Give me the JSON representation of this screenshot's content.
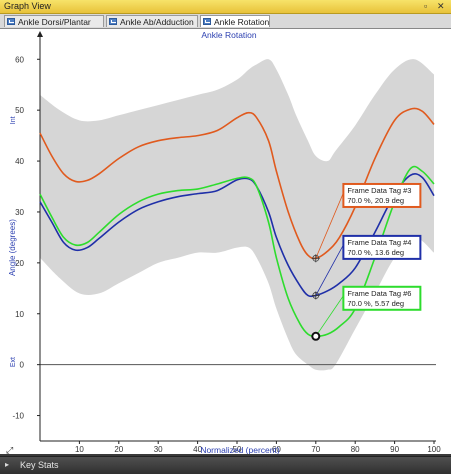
{
  "window": {
    "title": "Graph View",
    "pin_icon": "pin-icon",
    "close_icon": "close-icon"
  },
  "tabs": [
    {
      "label": "Ankle Dorsi/Plantar",
      "active": false
    },
    {
      "label": "Ankle Ab/Adduction",
      "active": false
    },
    {
      "label": "Ankle Rotation",
      "active": true
    }
  ],
  "status": {
    "key_stats_label": "Key Stats"
  },
  "colors": {
    "band": "#d6d6d6",
    "series_orange": "#e05a1e",
    "series_blue": "#1f2fa8",
    "series_green": "#2ddc2d",
    "axis": "#222222",
    "label": "#2b3fb0"
  },
  "chart_data": {
    "type": "line",
    "title": "Ankle Rotation",
    "xlabel": "Normalized (percent)",
    "ylabel": "Angle (degrees)",
    "ylabel_top": "Int",
    "ylabel_bottom": "Ext",
    "xlim": [
      0,
      100
    ],
    "ylim": [
      -15,
      63
    ],
    "x_ticks": [
      10,
      20,
      30,
      40,
      50,
      60,
      70,
      80,
      90,
      100
    ],
    "y_ticks": [
      -10,
      0,
      10,
      20,
      30,
      40,
      50,
      60
    ],
    "grid": false,
    "normal_band": {
      "x": [
        0,
        5,
        10,
        15,
        20,
        25,
        30,
        35,
        40,
        45,
        50,
        53,
        55,
        58,
        60,
        63,
        65,
        68,
        70,
        73,
        75,
        80,
        85,
        90,
        95,
        100
      ],
      "upper": [
        53,
        50,
        48,
        48,
        49,
        50,
        51,
        52,
        53,
        54,
        56,
        58,
        59,
        60,
        58,
        53,
        49,
        44,
        41,
        40,
        42,
        47,
        53,
        58,
        60,
        57
      ],
      "lower": [
        21,
        17,
        14,
        14,
        16,
        18,
        20,
        21,
        22,
        22,
        23,
        23,
        21,
        16,
        11,
        5,
        2,
        0,
        -1,
        -1,
        0,
        7,
        14,
        21,
        25,
        22
      ]
    },
    "series": [
      {
        "name": "",
        "color_key": "series_orange",
        "x": [
          0,
          3,
          6,
          9,
          12,
          15,
          20,
          25,
          30,
          35,
          40,
          45,
          50,
          53,
          55,
          58,
          60,
          63,
          66,
          68,
          70,
          73,
          76,
          80,
          85,
          90,
          94,
          97,
          100
        ],
        "y": [
          45.5,
          41,
          37.5,
          36,
          36.2,
          37.5,
          40.5,
          42.8,
          44,
          44.6,
          45,
          46,
          48.5,
          49.5,
          48.5,
          44,
          38,
          30,
          24,
          21.5,
          20.9,
          22.3,
          25,
          31,
          40.5,
          48,
          50.2,
          49.8,
          47.2
        ]
      },
      {
        "name": "",
        "color_key": "series_blue",
        "x": [
          0,
          3,
          6,
          9,
          12,
          15,
          20,
          25,
          30,
          35,
          40,
          45,
          50,
          53,
          55,
          58,
          60,
          63,
          66,
          68,
          70,
          73,
          76,
          80,
          85,
          90,
          94,
          97,
          100
        ],
        "y": [
          32,
          28,
          24,
          22.5,
          23,
          24.8,
          28,
          30.5,
          32,
          33,
          33.6,
          34.2,
          36.3,
          36.5,
          35,
          30,
          25,
          19.5,
          15.5,
          13.6,
          13.6,
          14.5,
          16,
          19,
          26,
          33.5,
          37.2,
          36.8,
          33.2
        ]
      },
      {
        "name": "",
        "color_key": "series_green",
        "x": [
          0,
          3,
          6,
          9,
          12,
          15,
          20,
          25,
          30,
          35,
          40,
          45,
          50,
          53,
          55,
          58,
          60,
          63,
          66,
          68,
          70,
          73,
          76,
          80,
          85,
          90,
          94,
          97,
          100
        ],
        "y": [
          33.5,
          29,
          25,
          23.5,
          24,
          26,
          29.5,
          32,
          33.5,
          34.2,
          34.5,
          35.5,
          36.6,
          36.7,
          35,
          28,
          21,
          13,
          8,
          6,
          5.57,
          6,
          7.5,
          11,
          21,
          32,
          38.5,
          38,
          35.5
        ]
      }
    ],
    "markers": [
      {
        "x": 70,
        "y": 20.9,
        "color_key": "series_orange",
        "style": "cross"
      },
      {
        "x": 70,
        "y": 13.6,
        "color_key": "series_blue",
        "style": "cross"
      },
      {
        "x": 70,
        "y": 5.57,
        "color_key": "series_green",
        "style": "circle"
      }
    ],
    "annotations": [
      {
        "title": "Frame Data Tag #3",
        "text": "70.0 %,  20.9 deg",
        "color_key": "series_orange",
        "anchor_x": 70,
        "anchor_y": 20.9,
        "box_x": 77,
        "box_y": 35.5
      },
      {
        "title": "Frame Data Tag #4",
        "text": "70.0 %,  13.6 deg",
        "color_key": "series_blue",
        "anchor_x": 70,
        "anchor_y": 13.6,
        "box_x": 77,
        "box_y": 25.3
      },
      {
        "title": "Frame Data Tag #6",
        "text": "70.0 %,  5.57 deg",
        "color_key": "series_green",
        "anchor_x": 70,
        "anchor_y": 5.57,
        "box_x": 77,
        "box_y": 15.3
      }
    ]
  }
}
